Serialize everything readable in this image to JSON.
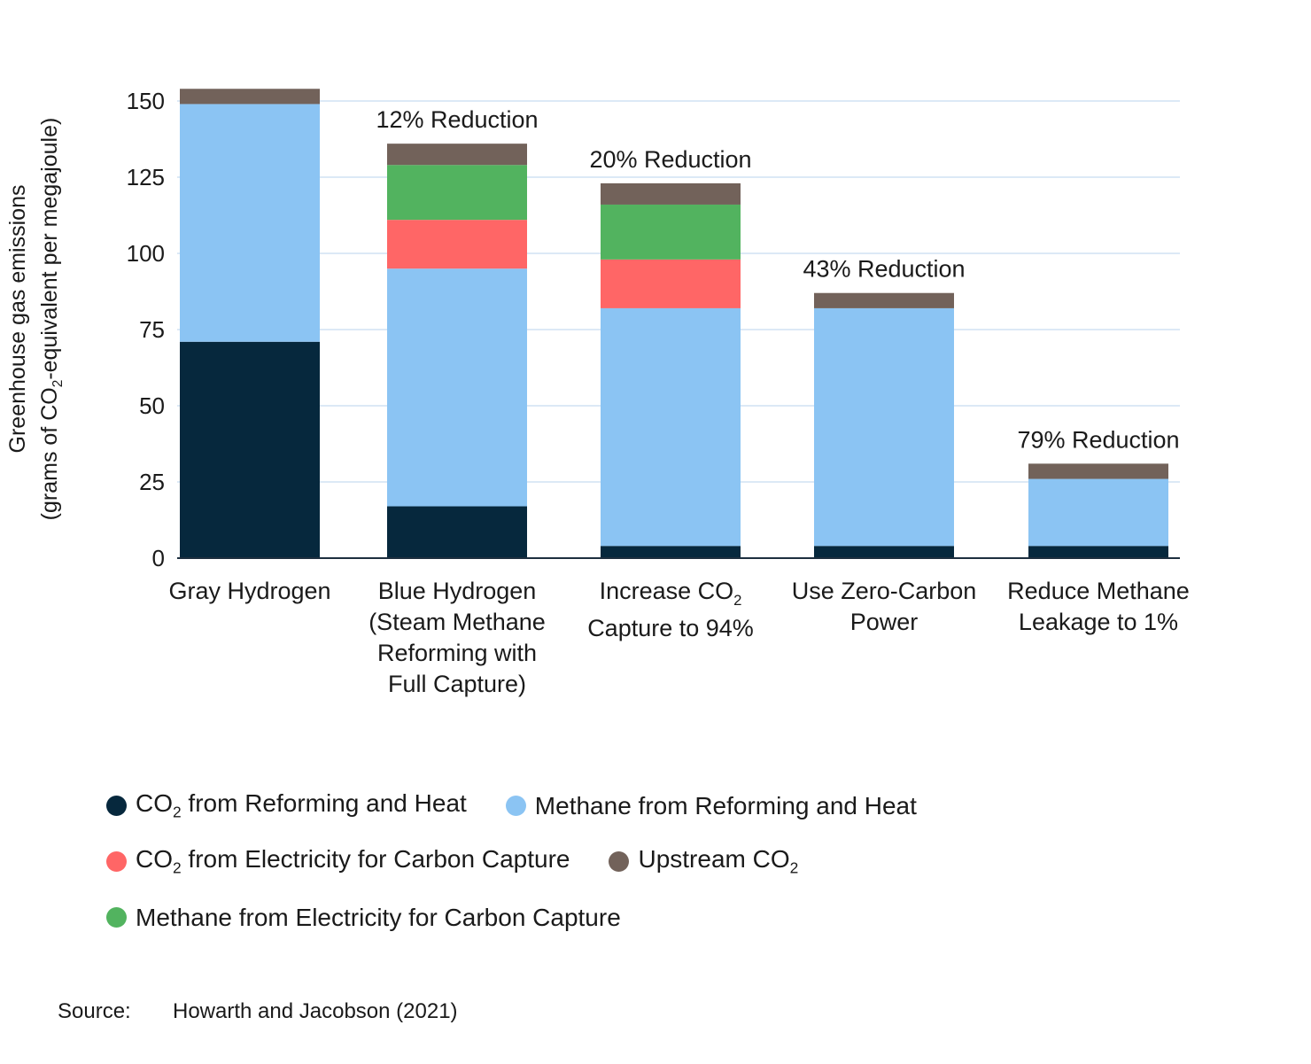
{
  "chart_data": {
    "type": "bar",
    "stacked": true,
    "ylabel_line1": "Greenhouse gas emissions",
    "ylabel_line2_pre": "(grams of CO",
    "ylabel_line2_sub": "2",
    "ylabel_line2_post": "-equivalent per megajoule)",
    "ylim": [
      0,
      150
    ],
    "yticks": [
      0,
      25,
      50,
      75,
      100,
      125,
      150
    ],
    "grid": true,
    "legend_position": "bottom",
    "categories": [
      [
        "Gray Hydrogen"
      ],
      [
        "Blue Hydrogen",
        "(Steam Methane",
        "Reforming with",
        "Full Capture)"
      ],
      [
        "Increase CO₂",
        "Capture to 94%"
      ],
      [
        "Use Zero-Carbon",
        "Power"
      ],
      [
        "Reduce Methane",
        "Leakage to 1%"
      ]
    ],
    "annotations": [
      "",
      "12% Reduction",
      "20% Reduction",
      "43% Reduction",
      "79% Reduction"
    ],
    "series": [
      {
        "key": "co2_reforming",
        "color": "#06283d",
        "values": [
          71,
          17,
          4,
          4,
          4
        ]
      },
      {
        "key": "methane_reforming",
        "color": "#8bc4f3",
        "values": [
          78,
          78,
          78,
          78,
          22
        ]
      },
      {
        "key": "co2_electricity",
        "color": "#ff6666",
        "values": [
          0,
          16,
          16,
          0,
          0
        ]
      },
      {
        "key": "methane_electricity",
        "color": "#52b35f",
        "values": [
          0,
          18,
          18,
          0,
          0
        ]
      },
      {
        "key": "upstream_co2",
        "color": "#72625a",
        "values": [
          5,
          7,
          7,
          5,
          5
        ]
      }
    ]
  },
  "legend": {
    "co2_reforming": {
      "pre": "CO",
      "sub": "2",
      "post": " from Reforming and Heat"
    },
    "methane_reforming": {
      "pre": "Methane from Reforming and Heat",
      "sub": "",
      "post": ""
    },
    "co2_electricity": {
      "pre": "CO",
      "sub": "2",
      "post": " from Electricity for Carbon Capture"
    },
    "upstream_co2": {
      "pre": "Upstream CO",
      "sub": "2",
      "post": ""
    },
    "methane_electricity": {
      "pre": "Methane from Electricity for Carbon Capture",
      "sub": "",
      "post": ""
    }
  },
  "source": {
    "label": "Source:",
    "text": "Howarth and Jacobson (2021)"
  }
}
